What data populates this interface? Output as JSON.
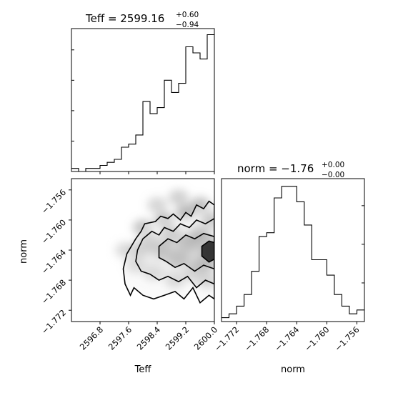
{
  "chart_data": [
    {
      "type": "histogram",
      "panel": "Teff marginal",
      "title": {
        "main": "Teff = 2599.16",
        "sup": "+0.60",
        "sub": "−0.94"
      },
      "xlim": [
        2596.0,
        2600.0
      ],
      "bin_edges": [
        2596.0,
        2596.2,
        2596.4,
        2596.6,
        2596.8,
        2597.0,
        2597.2,
        2597.4,
        2597.6,
        2597.8,
        2598.0,
        2598.2,
        2598.4,
        2598.6,
        2598.8,
        2599.0,
        2599.2,
        2599.4,
        2599.6,
        2599.8,
        2600.0
      ],
      "counts": [
        1,
        0,
        1,
        1,
        2,
        3,
        4,
        8,
        9,
        12,
        23,
        19,
        21,
        30,
        26,
        29,
        41,
        39,
        37,
        45
      ],
      "ylim": [
        0,
        47
      ],
      "x_ticks": [
        2596.8,
        2597.6,
        2598.4,
        2599.2,
        2600.0
      ],
      "y_ticks": [
        10,
        20,
        30,
        40
      ]
    },
    {
      "type": "histogram",
      "panel": "norm marginal",
      "title": {
        "main": "norm = −1.76",
        "sup": "+0.00",
        "sub": "−0.00"
      },
      "xlim": [
        -1.774,
        -1.755
      ],
      "bin_edges": [
        -1.774,
        -1.773,
        -1.772,
        -1.771,
        -1.77,
        -1.769,
        -1.768,
        -1.767,
        -1.766,
        -1.765,
        -1.764,
        -1.763,
        -1.762,
        -1.761,
        -1.76,
        -1.759,
        -1.758,
        -1.757,
        -1.756,
        -1.755
      ],
      "counts": [
        1,
        2,
        4,
        7,
        13,
        22,
        23,
        32,
        35,
        35,
        31,
        25,
        16,
        16,
        12,
        7,
        4,
        2,
        3
      ],
      "ylim": [
        0,
        37
      ],
      "x_ticks": [
        -1.772,
        -1.768,
        -1.764,
        -1.76,
        -1.756
      ],
      "x_tick_labels": [
        "−1.772",
        "−1.768",
        "−1.764",
        "−1.760",
        "−1.756"
      ],
      "y_ticks": [
        10,
        20,
        30
      ],
      "xlabel": "norm"
    },
    {
      "type": "heatmap",
      "panel": "joint density with contours",
      "xlabel": "Teff",
      "ylabel": "norm",
      "xlim": [
        2596.0,
        2600.0
      ],
      "ylim": [
        -1.7735,
        -1.7545
      ],
      "x_ticks": [
        2596.8,
        2597.6,
        2598.4,
        2599.2,
        2600.0
      ],
      "x_tick_labels": [
        "2596.8",
        "2597.6",
        "2598.4",
        "2599.2",
        "2600.0"
      ],
      "y_ticks": [
        -1.756,
        -1.76,
        -1.764,
        -1.768,
        -1.772
      ],
      "y_tick_labels": [
        "−1.756",
        "−1.760",
        "−1.764",
        "−1.768",
        "−1.772"
      ],
      "density_points": [
        [
          2599.9,
          -1.764,
          1.0
        ],
        [
          2599.6,
          -1.762,
          0.85
        ],
        [
          2599.7,
          -1.766,
          0.8
        ],
        [
          2599.3,
          -1.763,
          0.7
        ],
        [
          2599.0,
          -1.765,
          0.65
        ],
        [
          2598.8,
          -1.762,
          0.6
        ],
        [
          2598.5,
          -1.764,
          0.55
        ],
        [
          2598.2,
          -1.763,
          0.5
        ],
        [
          2597.9,
          -1.764,
          0.45
        ],
        [
          2598.0,
          -1.761,
          0.4
        ],
        [
          2598.6,
          -1.76,
          0.45
        ],
        [
          2599.2,
          -1.759,
          0.5
        ],
        [
          2599.6,
          -1.758,
          0.45
        ],
        [
          2599.9,
          -1.76,
          0.55
        ],
        [
          2599.4,
          -1.767,
          0.45
        ],
        [
          2598.9,
          -1.768,
          0.35
        ],
        [
          2598.3,
          -1.767,
          0.3
        ],
        [
          2597.8,
          -1.766,
          0.3
        ],
        [
          2599.8,
          -1.768,
          0.4
        ],
        [
          2597.5,
          -1.764,
          0.2
        ],
        [
          2598.4,
          -1.758,
          0.25
        ],
        [
          2599.0,
          -1.757,
          0.3
        ]
      ],
      "contours": [
        {
          "level": "outer",
          "points": [
            [
              2597.55,
              -1.7645
            ],
            [
              2597.8,
              -1.7625
            ],
            [
              2597.95,
              -1.7615
            ],
            [
              2598.05,
              -1.7605
            ],
            [
              2598.35,
              -1.7602
            ],
            [
              2598.5,
              -1.7595
            ],
            [
              2598.7,
              -1.7598
            ],
            [
              2598.85,
              -1.7592
            ],
            [
              2599.05,
              -1.76
            ],
            [
              2599.2,
              -1.759
            ],
            [
              2599.35,
              -1.7595
            ],
            [
              2599.5,
              -1.758
            ],
            [
              2599.7,
              -1.7585
            ],
            [
              2599.85,
              -1.7575
            ],
            [
              2600.0,
              -1.758
            ],
            [
              2600.0,
              -1.7705
            ],
            [
              2599.85,
              -1.77
            ],
            [
              2599.6,
              -1.771
            ],
            [
              2599.4,
              -1.769
            ],
            [
              2599.15,
              -1.7705
            ],
            [
              2598.9,
              -1.7695
            ],
            [
              2598.6,
              -1.77
            ],
            [
              2598.3,
              -1.7705
            ],
            [
              2598.0,
              -1.77
            ],
            [
              2597.75,
              -1.769
            ],
            [
              2597.65,
              -1.77
            ],
            [
              2597.5,
              -1.7685
            ],
            [
              2597.45,
              -1.7665
            ]
          ]
        },
        {
          "level": "middle",
          "points": [
            [
              2597.85,
              -1.764
            ],
            [
              2598.0,
              -1.7625
            ],
            [
              2598.25,
              -1.7615
            ],
            [
              2598.45,
              -1.762
            ],
            [
              2598.6,
              -1.761
            ],
            [
              2598.85,
              -1.7615
            ],
            [
              2599.05,
              -1.7605
            ],
            [
              2599.3,
              -1.761
            ],
            [
              2599.5,
              -1.76
            ],
            [
              2599.75,
              -1.7605
            ],
            [
              2600.0,
              -1.7598
            ],
            [
              2600.0,
              -1.7685
            ],
            [
              2599.75,
              -1.768
            ],
            [
              2599.5,
              -1.769
            ],
            [
              2599.25,
              -1.7675
            ],
            [
              2599.0,
              -1.7682
            ],
            [
              2598.7,
              -1.7675
            ],
            [
              2598.45,
              -1.768
            ],
            [
              2598.2,
              -1.7672
            ],
            [
              2597.95,
              -1.7668
            ],
            [
              2597.8,
              -1.7655
            ]
          ]
        },
        {
          "level": "inner",
          "points": [
            [
              2598.45,
              -1.7635
            ],
            [
              2598.7,
              -1.7625
            ],
            [
              2598.95,
              -1.763
            ],
            [
              2599.2,
              -1.762
            ],
            [
              2599.45,
              -1.7625
            ],
            [
              2599.7,
              -1.7618
            ],
            [
              2600.0,
              -1.7622
            ],
            [
              2600.0,
              -1.7665
            ],
            [
              2599.7,
              -1.766
            ],
            [
              2599.45,
              -1.7668
            ],
            [
              2599.15,
              -1.7658
            ],
            [
              2598.9,
              -1.7663
            ],
            [
              2598.65,
              -1.7655
            ],
            [
              2598.45,
              -1.765
            ]
          ]
        },
        {
          "level": "core",
          "points": [
            [
              2599.65,
              -1.7635
            ],
            [
              2599.85,
              -1.7628
            ],
            [
              2600.0,
              -1.763
            ],
            [
              2600.0,
              -1.7652
            ],
            [
              2599.85,
              -1.7656
            ],
            [
              2599.65,
              -1.7648
            ]
          ]
        }
      ]
    }
  ]
}
